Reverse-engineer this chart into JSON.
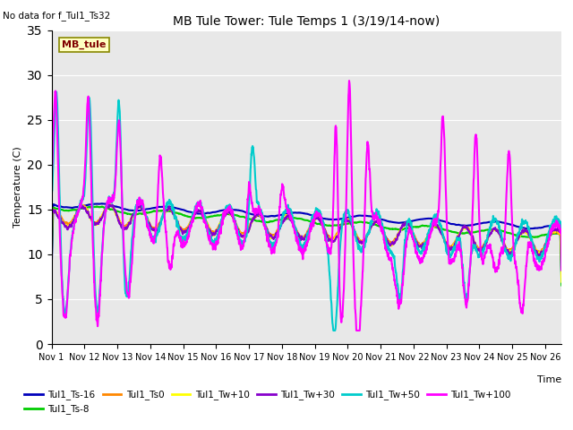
{
  "title": "MB Tule Tower: Tule Temps 1 (3/19/14-now)",
  "subtitle": "No data for f_Tul1_Ts32",
  "xlabel": "Time",
  "ylabel": "Temperature (C)",
  "ylim": [
    0,
    35
  ],
  "yticks": [
    0,
    5,
    10,
    15,
    20,
    25,
    30,
    35
  ],
  "bg_color": "#e8e8e8",
  "legend_box_color": "#ffffc0",
  "legend_box_text": "MB_tule",
  "legend_box_text_color": "#800000",
  "series": [
    {
      "name": "Tul1_Ts-16",
      "color": "#0000bb",
      "lw": 1.5
    },
    {
      "name": "Tul1_Ts-8",
      "color": "#00cc00",
      "lw": 1.5
    },
    {
      "name": "Tul1_Ts0",
      "color": "#ff8800",
      "lw": 1.5
    },
    {
      "name": "Tul1_Tw+10",
      "color": "#ffff00",
      "lw": 1.5
    },
    {
      "name": "Tul1_Tw+30",
      "color": "#8800cc",
      "lw": 1.5
    },
    {
      "name": "Tul1_Tw+50",
      "color": "#00cccc",
      "lw": 1.5
    },
    {
      "name": "Tul1_Tw+100",
      "color": "#ff00ff",
      "lw": 1.5
    }
  ],
  "xtick_labels": [
    "Nov 1",
    "Nov 12",
    "Nov 13",
    "Nov 14",
    "Nov 15",
    "Nov 16",
    "Nov 17",
    "Nov 18",
    "Nov 19",
    "Nov 20",
    "Nov 21",
    "Nov 22",
    "Nov 23",
    "Nov 24",
    "Nov 25",
    "Nov 26"
  ],
  "xtick_positions": [
    1,
    2,
    3,
    4,
    5,
    6,
    7,
    8,
    9,
    10,
    11,
    12,
    13,
    14,
    15,
    16
  ]
}
